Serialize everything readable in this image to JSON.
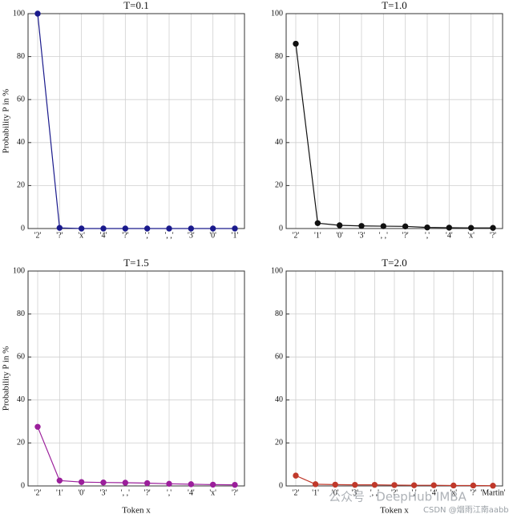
{
  "chart_data": [
    {
      "type": "line",
      "title": "T=0.1",
      "ylabel": "Probability P in %",
      "color": "#1a1a8c",
      "categories": [
        "'2'",
        "'?'",
        "'x'",
        "'4'",
        "'?'",
        "','",
        "', ,'",
        "'3'",
        "'0'",
        "'1'"
      ],
      "values": [
        100,
        0.3,
        0,
        0,
        0,
        0,
        0,
        0,
        0,
        0
      ],
      "ylim": [
        0,
        100
      ],
      "yticks": [
        0,
        20,
        40,
        60,
        80,
        100
      ],
      "grid": true
    },
    {
      "type": "line",
      "title": "T=1.0",
      "color": "#111111",
      "categories": [
        "'2'",
        "'1'",
        "'0'",
        "'3'",
        "', ,'",
        "'?'",
        "','",
        "'4'",
        "'x'",
        "'?'"
      ],
      "values": [
        86,
        2.5,
        1.5,
        1.2,
        1.1,
        1.0,
        0.5,
        0.4,
        0.3,
        0.3
      ],
      "ylim": [
        0,
        100
      ],
      "yticks": [
        0,
        20,
        40,
        60,
        80,
        100
      ],
      "grid": true
    },
    {
      "type": "line",
      "title": "T=1.5",
      "ylabel": "Probability P in %",
      "xlabel": "Token x",
      "color": "#9b1f9b",
      "categories": [
        "'2'",
        "'1'",
        "'0'",
        "'3'",
        "', ,'",
        "'?'",
        "','",
        "'4'",
        "'x'",
        "'?'"
      ],
      "values": [
        27.5,
        2.5,
        1.8,
        1.6,
        1.5,
        1.3,
        1.0,
        0.8,
        0.6,
        0.5
      ],
      "ylim": [
        0,
        100
      ],
      "yticks": [
        0,
        20,
        40,
        60,
        80,
        100
      ],
      "grid": true
    },
    {
      "type": "line",
      "title": "T=2.0",
      "xlabel": "Token x",
      "color": "#c0392b",
      "categories": [
        "'2'",
        "'1'",
        "'0'",
        "'3'",
        "', ,'",
        "'?'",
        "','",
        "'4'",
        "'x'",
        "'?'",
        "'Martin'"
      ],
      "values": [
        4.8,
        0.8,
        0.6,
        0.5,
        0.5,
        0.4,
        0.3,
        0.3,
        0.2,
        0.2,
        0.1
      ],
      "ylim": [
        0,
        100
      ],
      "yticks": [
        0,
        20,
        40,
        60,
        80,
        100
      ],
      "grid": true
    }
  ],
  "watermark": {
    "text": "公众号 · DeepHub IMBA",
    "credit": "CSDN @烟雨江南aabb"
  }
}
